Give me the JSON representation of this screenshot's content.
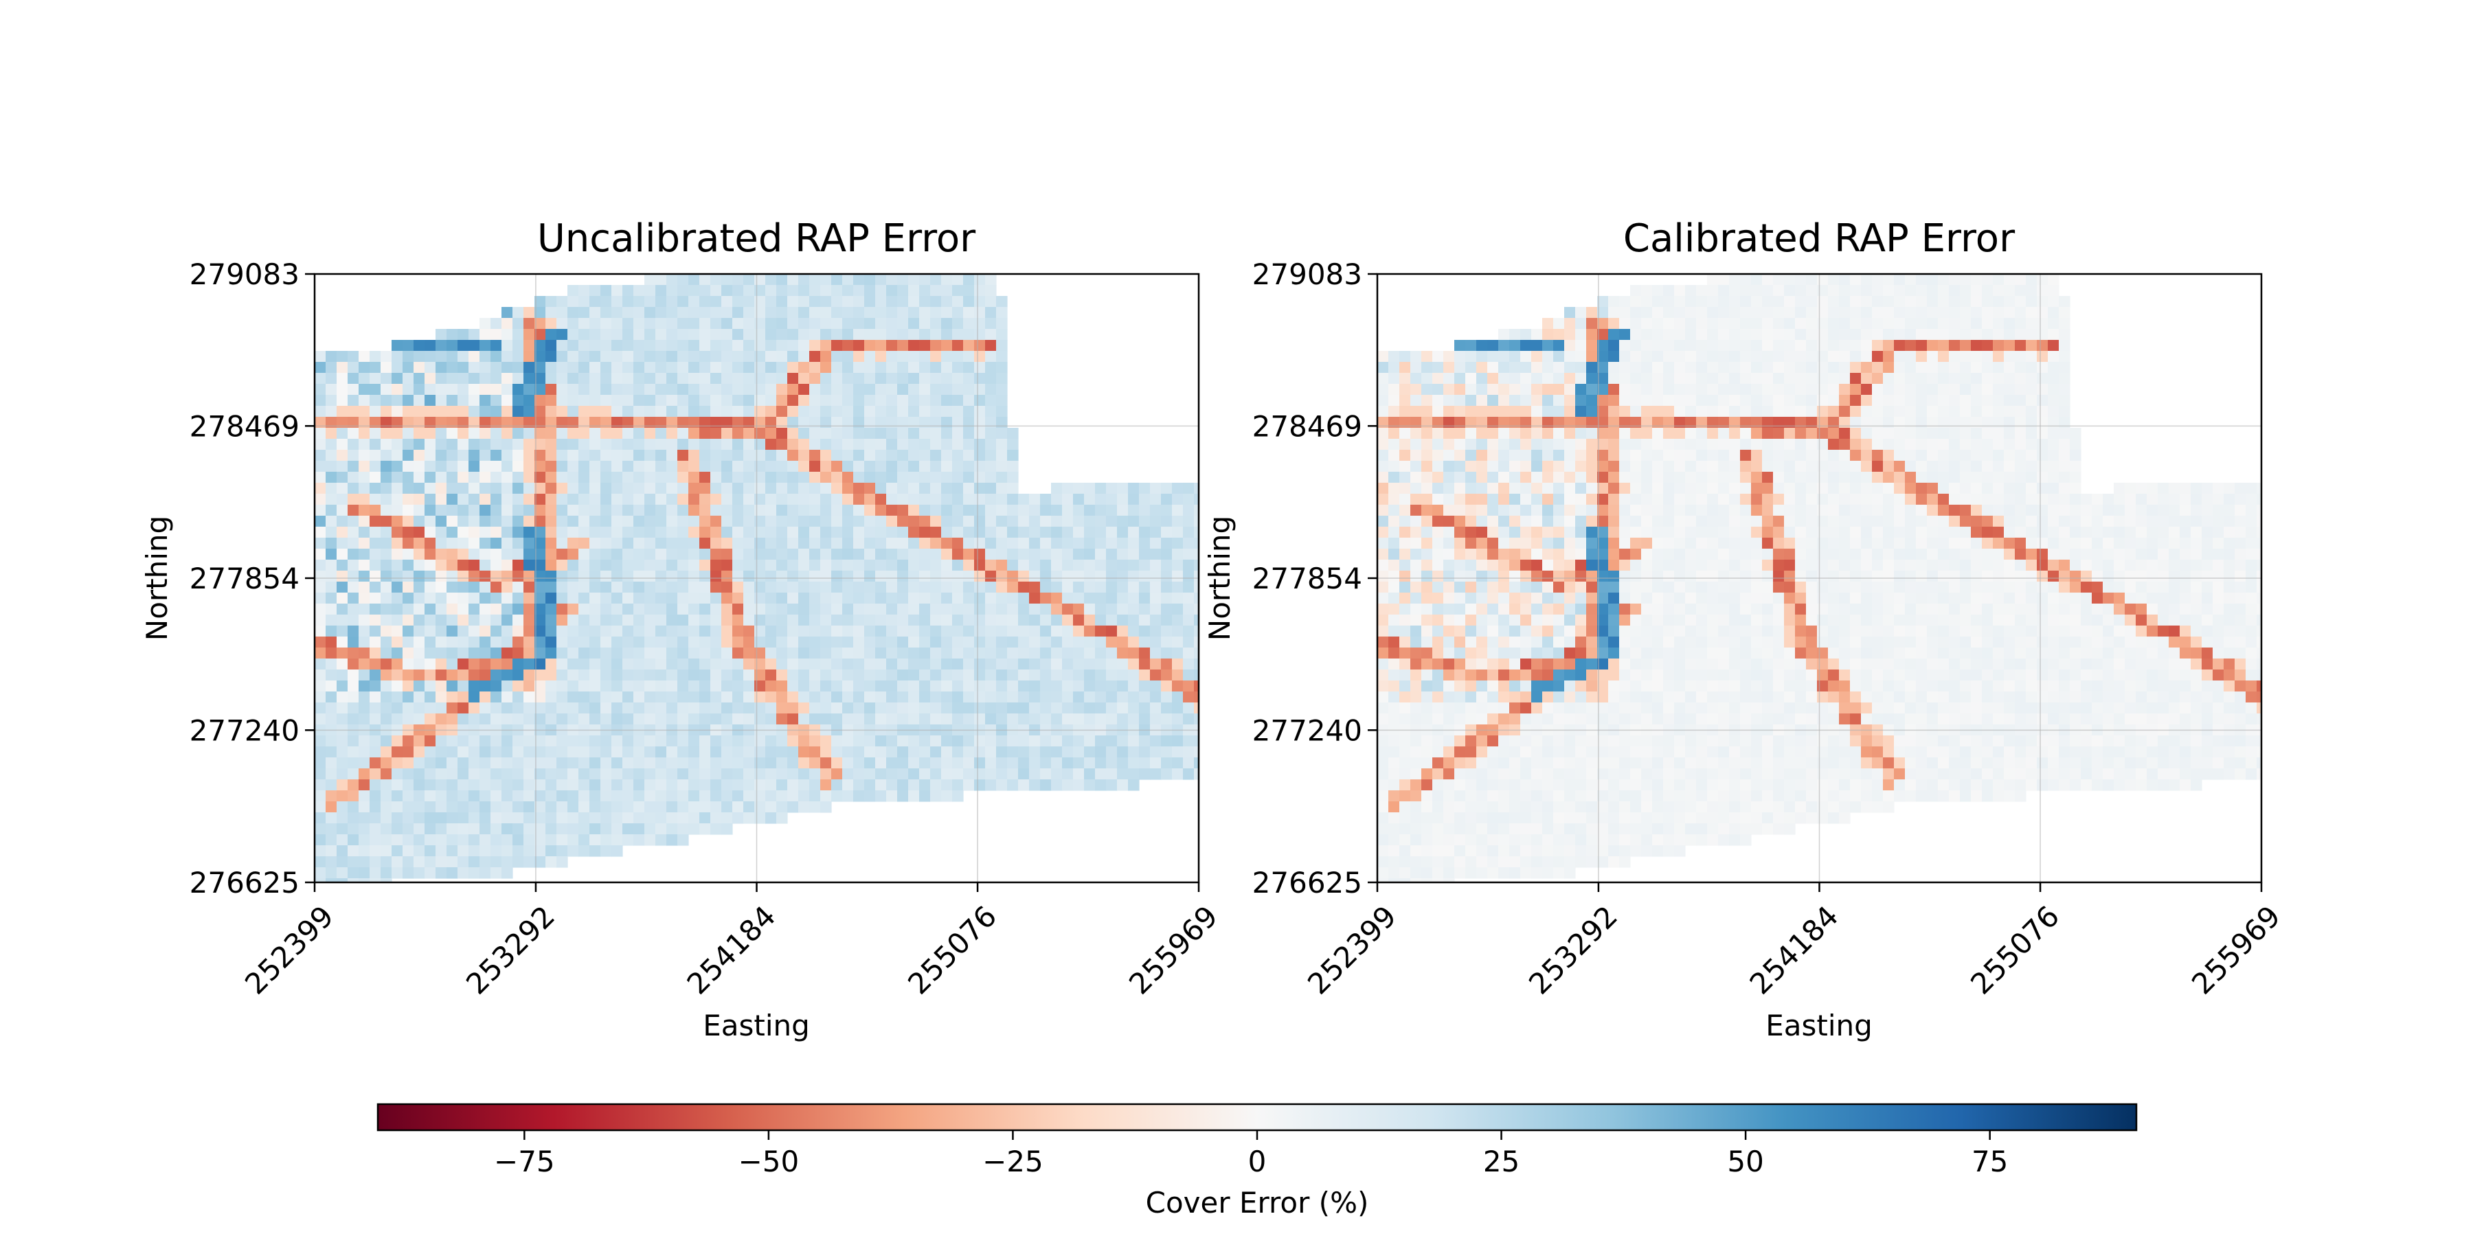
{
  "chart_data": [
    {
      "type": "heatmap",
      "title": "Uncalibrated RAP Error",
      "xlabel": "Easting",
      "ylabel": "Northing",
      "x_ticks": [
        "252399",
        "253292",
        "254184",
        "255076",
        "255969"
      ],
      "y_ticks": [
        "276625",
        "277240",
        "277854",
        "278469",
        "279083"
      ],
      "xlim": [
        252399,
        255969
      ],
      "ylim": [
        276625,
        279083
      ],
      "grid": true,
      "colormap": "RdBu",
      "typical_value": 18,
      "road_error": -40
    },
    {
      "type": "heatmap",
      "title": "Calibrated RAP Error",
      "xlabel": "Easting",
      "ylabel": "Northing",
      "x_ticks": [
        "252399",
        "253292",
        "254184",
        "255076",
        "255969"
      ],
      "y_ticks": [
        "276625",
        "277240",
        "277854",
        "278469",
        "279083"
      ],
      "xlim": [
        252399,
        255969
      ],
      "ylim": [
        276625,
        279083
      ],
      "grid": true,
      "colormap": "RdBu",
      "typical_value": 3,
      "road_error": -40
    }
  ],
  "colorbar": {
    "label": "Cover Error (%)",
    "range": [
      -90,
      90
    ],
    "ticks": [
      {
        "value": -75,
        "label": "−75"
      },
      {
        "value": -50,
        "label": "−50"
      },
      {
        "value": -25,
        "label": "−25"
      },
      {
        "value": 0,
        "label": "0"
      },
      {
        "value": 25,
        "label": "25"
      },
      {
        "value": 50,
        "label": "50"
      },
      {
        "value": 75,
        "label": "75"
      }
    ],
    "colors": [
      "#67001f",
      "#b2182b",
      "#d6604d",
      "#f4a582",
      "#fddbc7",
      "#f7f7f7",
      "#d1e5f0",
      "#92c5de",
      "#4393c3",
      "#2166ac",
      "#053061"
    ]
  }
}
